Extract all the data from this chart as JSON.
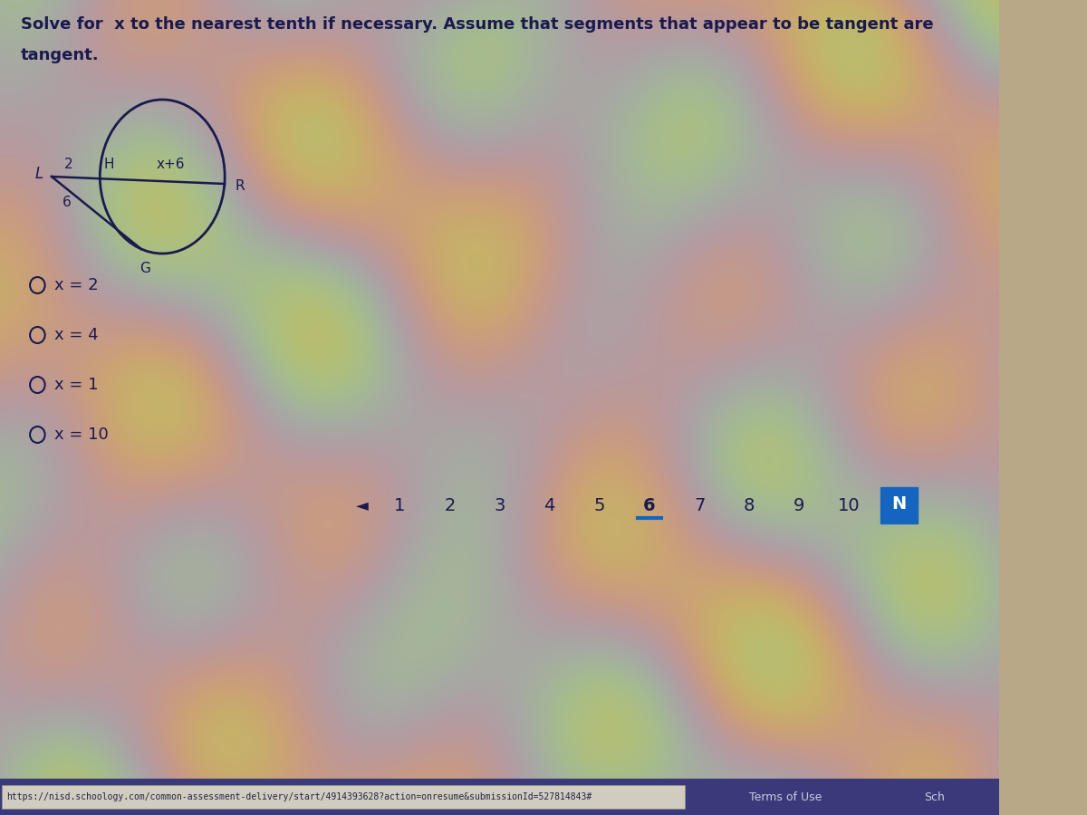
{
  "title_line1": "Solve for  x to the nearest tenth if necessary. Assume that segments that appear to be tangent are",
  "title_line2": "tangent.",
  "bg_color_base": "#b8a888",
  "text_color": "#1a1a4e",
  "circle_color": "#1a1a4e",
  "options": [
    "x = 2",
    "x = 4",
    "x = 1",
    "x = 10"
  ],
  "label_L": "L",
  "label_H": "H",
  "label_R": "R",
  "label_G": "G",
  "label_2": "2",
  "label_x6": "x+6",
  "label_6": "6",
  "nav_numbers": [
    "1",
    "2",
    "3",
    "4",
    "5",
    "6",
    "7",
    "8",
    "9",
    "10"
  ],
  "nav_active": "6",
  "nav_active_color": "#1565C0",
  "nav_box_color": "#1565C0",
  "url_text": "https://nisd.schoology.com/common-assessment-delivery/start/4914393628?action=onresume&submissionId=527814843#",
  "terms_text": "Terms of Use",
  "sch_text": "Sch",
  "bottom_bar_color": "#3a3a7a",
  "url_bar_color": "#d0ccc0"
}
